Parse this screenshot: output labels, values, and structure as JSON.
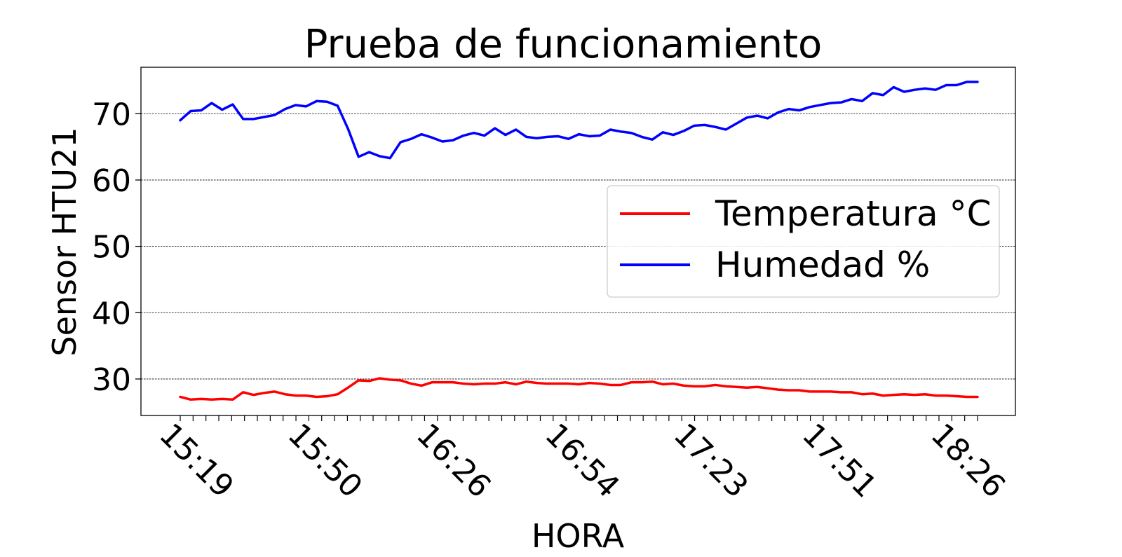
{
  "chart_data": {
    "type": "line",
    "title": "Prueba de funcionamiento",
    "xlabel": "HORA",
    "ylabel": "Sensor HTU21",
    "ylim": [
      24.5,
      77
    ],
    "yticks": [
      30,
      40,
      50,
      60,
      70
    ],
    "xtick_labels": [
      "15:19",
      "15:50",
      "16:26",
      "16:54",
      "17:23",
      "17:51",
      "18:26"
    ],
    "xtick_label_indices": [
      0,
      10,
      20,
      30,
      40,
      50,
      60
    ],
    "minor_tick_count": 62,
    "grid": "horizontal",
    "legend_position": "center-right",
    "series": [
      {
        "name": "Temperatura °C",
        "color": "#ff0000",
        "values": [
          27.3,
          26.9,
          27.0,
          26.9,
          27.0,
          26.9,
          28.0,
          27.6,
          27.9,
          28.1,
          27.7,
          27.5,
          27.5,
          27.3,
          27.4,
          27.7,
          28.7,
          29.8,
          29.7,
          30.1,
          29.9,
          29.8,
          29.3,
          29.0,
          29.5,
          29.5,
          29.5,
          29.3,
          29.2,
          29.3,
          29.3,
          29.5,
          29.2,
          29.6,
          29.4,
          29.3,
          29.3,
          29.3,
          29.2,
          29.4,
          29.3,
          29.1,
          29.1,
          29.5,
          29.5,
          29.6,
          29.2,
          29.3,
          29.0,
          28.9,
          28.9,
          29.1,
          28.9,
          28.8,
          28.7,
          28.8,
          28.6,
          28.4,
          28.3,
          28.3,
          28.1,
          28.1,
          28.1,
          28.0,
          28.0,
          27.7,
          27.8,
          27.5,
          27.6,
          27.7,
          27.6,
          27.7,
          27.5,
          27.5,
          27.4,
          27.3,
          27.3
        ]
      },
      {
        "name": "Humedad %",
        "color": "#0000ff",
        "values": [
          69.0,
          70.4,
          70.5,
          71.6,
          70.6,
          71.4,
          69.2,
          69.2,
          69.5,
          69.8,
          70.7,
          71.3,
          71.1,
          71.9,
          71.8,
          71.2,
          67.7,
          63.5,
          64.2,
          63.6,
          63.3,
          65.7,
          66.2,
          66.9,
          66.4,
          65.8,
          66.0,
          66.7,
          67.1,
          66.7,
          67.8,
          66.8,
          67.6,
          66.5,
          66.3,
          66.5,
          66.6,
          66.2,
          66.9,
          66.6,
          66.7,
          67.6,
          67.3,
          67.1,
          66.5,
          66.1,
          67.2,
          66.8,
          67.4,
          68.2,
          68.3,
          68.0,
          67.6,
          68.5,
          69.4,
          69.7,
          69.3,
          70.2,
          70.7,
          70.5,
          71.0,
          71.3,
          71.6,
          71.7,
          72.2,
          71.9,
          73.1,
          72.8,
          74.0,
          73.3,
          73.6,
          73.8,
          73.6,
          74.3,
          74.3,
          74.8,
          74.8
        ]
      }
    ]
  }
}
